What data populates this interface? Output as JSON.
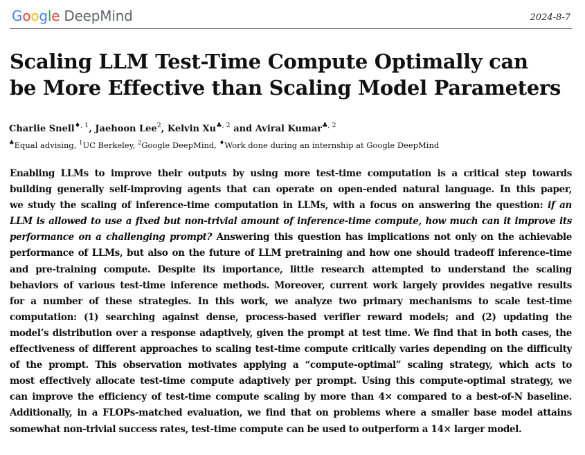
{
  "header": {
    "logo_google": [
      "G",
      "o",
      "o",
      "g",
      "l",
      "e"
    ],
    "logo_deepmind": "DeepMind",
    "date": "2024-8-7"
  },
  "title": {
    "line1": "Scaling LLM Test-Time Compute Optimally can",
    "line2": "be More Effective than Scaling Model Parameters"
  },
  "authors": [
    {
      "name": "Charlie Snell",
      "marks": "♦, 1",
      "sep": ", "
    },
    {
      "name": "Jaehoon Lee",
      "marks": "2",
      "sep": ", "
    },
    {
      "name": "Kelvin Xu",
      "marks": "♣, 2",
      "sep": " and "
    },
    {
      "name": "Aviral Kumar",
      "marks": "♣, 2",
      "sep": ""
    }
  ],
  "affiliations": {
    "m1": "♣",
    "t1": "Equal advising, ",
    "m2": "1",
    "t2": "UC Berkeley, ",
    "m3": "2",
    "t3": "Google DeepMind, ",
    "m4": "♦",
    "t4": "Work done during an internship at Google DeepMind"
  },
  "abstract": {
    "l1": "Enabling LLMs to improve their outputs by using more test-time computation is a critical step towards",
    "l2": "building generally self-improving agents that can operate on open-ended natural language. In this paper,",
    "l3a": "we study the scaling of inference-time computation in LLMs, with a focus on answering the question: ",
    "l3b": "if an",
    "l4": "LLM is allowed to use a fixed but non-trivial amount of inference-time compute, how much can it improve its",
    "l5a": "performance on a challenging prompt?",
    "l5b": " Answering this question has implications not only on the achievable",
    "l6": "performance of LLMs, but also on the future of LLM pretraining and how one should tradeoff inference-time",
    "l7": "and pre-training compute.  Despite its importance, little research attempted to understand the scaling",
    "l8": "behaviors of various test-time inference methods. Moreover, current work largely provides negative results",
    "l9": "for a number of these strategies.  In this work, we analyze two primary mechanisms to scale test-time",
    "l10": "computation: (1) searching against dense, process-based verifier reward models; and (2) updating the",
    "l11": "model’s distribution over a response adaptively, given the prompt at test time. We find that in both cases, the",
    "l12": "effectiveness of different approaches to scaling test-time compute critically varies depending on the difficulty",
    "l13": "of the prompt.  This observation motivates applying a “compute-optimal” scaling strategy, which acts to",
    "l14": "most effectively allocate test-time compute adaptively per prompt. Using this compute-optimal strategy, we",
    "l15": "can improve the efficiency of test-time compute scaling by more than 4× compared to a best-of-N baseline.",
    "l16": "Additionally, in a FLOPs-matched evaluation, we find that on problems where a smaller base model attains",
    "l17": "somewhat non-trivial success rates, test-time compute can be used to outperform a 14× larger model."
  },
  "colors": {
    "google_blue": "#4285F4",
    "google_red": "#EA4335",
    "google_yellow": "#FBBC05",
    "google_green": "#34A853",
    "deepmind_gray": "#5f6368"
  }
}
